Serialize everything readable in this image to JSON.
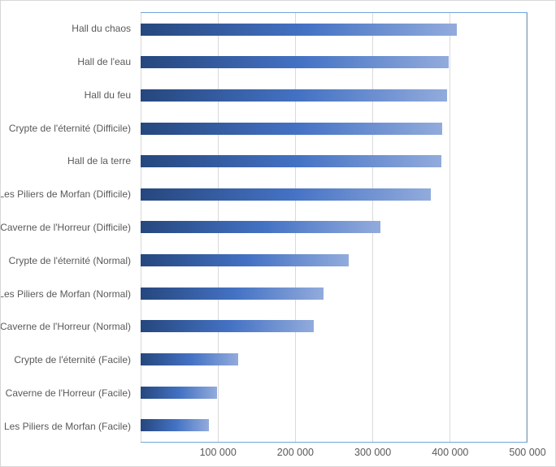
{
  "chart_data": {
    "type": "bar",
    "orientation": "horizontal",
    "title": "",
    "xlabel": "",
    "ylabel": "",
    "categories": [
      "Hall du chaos",
      "Hall de l'eau",
      "Hall du feu",
      "Crypte de l'éternité (Difficile)",
      "Hall de la terre",
      "Les Piliers de Morfan (Difficile)",
      "Caverne de l'Horreur (Difficile)",
      "Crypte de l'éternité (Normal)",
      "Les Piliers de Morfan (Normal)",
      "Caverne de l'Horreur (Normal)",
      "Crypte de l'éternité (Facile)",
      "Caverne de l'Horreur (Facile)",
      "Les Piliers de Morfan (Facile)"
    ],
    "values": [
      409000,
      399000,
      397000,
      391000,
      389000,
      376000,
      310000,
      269000,
      237000,
      224000,
      126000,
      99000,
      88000
    ],
    "xlim": [
      0,
      500000
    ],
    "x_ticks": [
      100000,
      200000,
      300000,
      400000,
      500000
    ],
    "x_tick_labels": [
      "100 000",
      "200 000",
      "300 000",
      "400 000",
      "500 000"
    ],
    "grid": true,
    "legend": false,
    "colors": {
      "bar_gradient_start": "#26477e",
      "bar_gradient_mid": "#4472c4",
      "bar_gradient_end": "#92abdc",
      "plot_border": "#6ea6d9",
      "gridline": "#d9d9d9",
      "tick_label": "#595959",
      "category_label": "#595959",
      "chart_border": "#d7d7d7",
      "background": "#ffffff"
    }
  }
}
